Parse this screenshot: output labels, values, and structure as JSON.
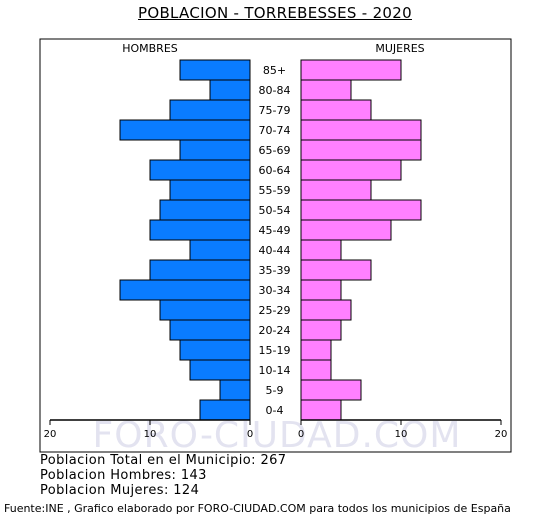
{
  "chart_data": {
    "type": "bar",
    "title": "POBLACION - TORREBESSES - 2020",
    "orientation": "horizontal-pyramid",
    "categories": [
      "85+",
      "80-84",
      "75-79",
      "70-74",
      "65-69",
      "60-64",
      "55-59",
      "50-54",
      "45-49",
      "40-44",
      "35-39",
      "30-34",
      "25-29",
      "20-24",
      "15-19",
      "10-14",
      "5-9",
      "0-4"
    ],
    "series": [
      {
        "name": "HOMBRES",
        "color": "#0a7cff",
        "values": [
          7,
          4,
          8,
          13,
          7,
          10,
          8,
          9,
          10,
          6,
          10,
          13,
          9,
          8,
          7,
          6,
          3,
          5
        ]
      },
      {
        "name": "MUJERES",
        "color": "#ff80ff",
        "values": [
          10,
          5,
          7,
          12,
          12,
          10,
          7,
          12,
          9,
          4,
          7,
          4,
          5,
          4,
          3,
          3,
          6,
          4
        ]
      }
    ],
    "xlim": [
      0,
      20
    ],
    "left_ticks": [
      "20",
      "10",
      "0"
    ],
    "right_ticks": [
      "0",
      "10",
      "20"
    ],
    "grid": false
  },
  "watermark": "FORO-CIUDAD.COM",
  "summary": {
    "total": "Poblacion Total en el Municipio: 267",
    "hombres": "Poblacion Hombres: 143",
    "mujeres": "Poblacion Mujeres: 124"
  },
  "source": "Fuente:INE , Grafico elaborado por FORO-CIUDAD.COM para todos los municipios de España"
}
